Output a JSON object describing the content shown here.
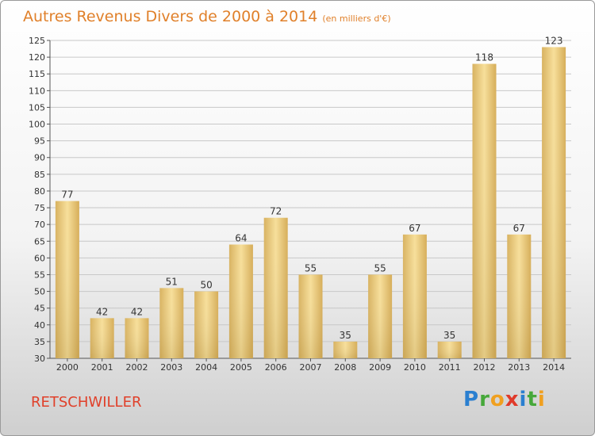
{
  "chart_data": {
    "type": "bar",
    "title": "Autres Revenus Divers de 2000 à 2014",
    "subtitle": "(en milliers d'€)",
    "categories": [
      "2000",
      "2001",
      "2002",
      "2003",
      "2004",
      "2005",
      "2006",
      "2007",
      "2008",
      "2009",
      "2010",
      "2011",
      "2012",
      "2013",
      "2014"
    ],
    "values": [
      77,
      42,
      42,
      51,
      50,
      64,
      72,
      55,
      35,
      55,
      67,
      35,
      118,
      67,
      123
    ],
    "ylim": [
      30,
      125
    ],
    "yticks": [
      30,
      35,
      40,
      45,
      50,
      55,
      60,
      65,
      70,
      75,
      80,
      85,
      90,
      95,
      100,
      105,
      110,
      115,
      120,
      125
    ],
    "xlabel": "",
    "ylabel": "",
    "grid": true,
    "bar_color": "#e9c675"
  },
  "footer": {
    "place": "RETSCHWILLER",
    "logo": "Proxiti"
  },
  "colors": {
    "title": "#e0802a",
    "place": "#e0402a",
    "grid": "#c8c8c8"
  }
}
